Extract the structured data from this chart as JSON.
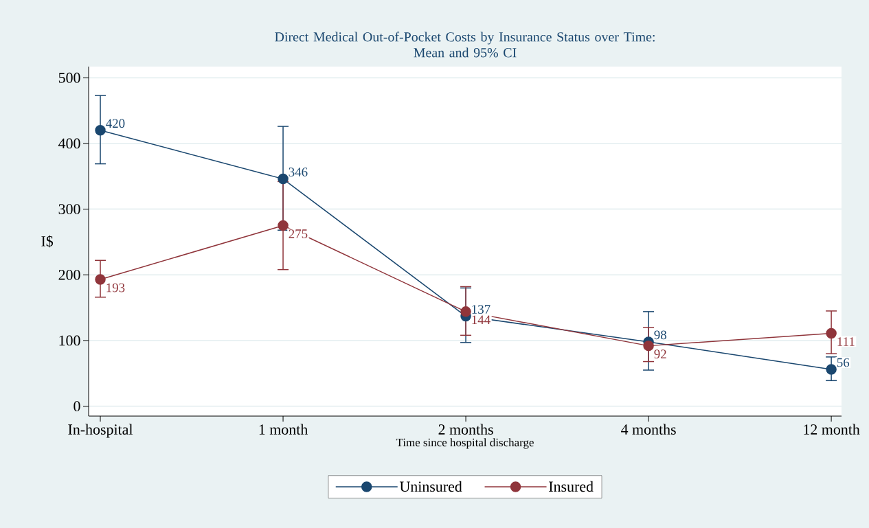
{
  "chart_data": {
    "type": "line",
    "title": "Direct Medical Out-of-Pocket Costs by Insurance Status over Time:\nMean and 95% CI",
    "xlabel": "Time since hospital discharge",
    "ylabel": "I$",
    "categories": [
      "In-hospital",
      "1 month",
      "2 months",
      "4 months",
      "12 month"
    ],
    "series": [
      {
        "name": "Uninsured",
        "color": "#1a476f",
        "values": [
          420,
          346,
          137,
          98,
          56
        ],
        "errors": [
          [
            369,
            473
          ],
          [
            268,
            426
          ],
          [
            97,
            180
          ],
          [
            55,
            144
          ],
          [
            39,
            75
          ]
        ]
      },
      {
        "name": "Insured",
        "color": "#90353b",
        "values": [
          193,
          275,
          144,
          92,
          111
        ],
        "errors": [
          [
            166,
            222
          ],
          [
            208,
            342
          ],
          [
            108,
            182
          ],
          [
            68,
            120
          ],
          [
            80,
            145
          ]
        ]
      }
    ],
    "ylim": [
      -15,
      517
    ],
    "yticks": [
      0,
      100,
      200,
      300,
      400,
      500
    ],
    "grid": "y",
    "legend": "bottom",
    "marker": "circle",
    "line_style": "solid",
    "data_labels": true
  }
}
